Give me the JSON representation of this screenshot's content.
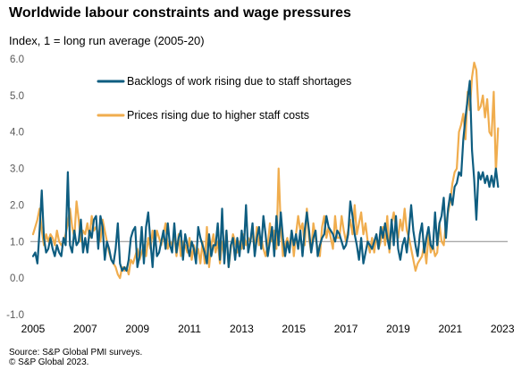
{
  "title": "Worldwide labour constraints and wage pressures",
  "subtitle": "Index, 1 = long run average (2005-20)",
  "source_line1": "Source: S&P Global PMI surveys.",
  "source_line2": "© S&P Global 2023.",
  "chart_data": {
    "type": "line",
    "ylim": [
      -1.0,
      6.0
    ],
    "yticks": [
      "-1.0",
      "0.0",
      "1.0",
      "2.0",
      "3.0",
      "4.0",
      "5.0",
      "6.0"
    ],
    "xlim": [
      2005.0,
      2023.2
    ],
    "xticks": [
      "2005",
      "2007",
      "2009",
      "2011",
      "2013",
      "2015",
      "2017",
      "2019",
      "2021",
      "2023"
    ],
    "reference_line": 1.0,
    "grid": false,
    "legend_position": "top-center",
    "series": [
      {
        "name": "Backlogs of work rising due to staff shortages",
        "color": "#0e5d80",
        "x_start": 2005.0,
        "x_step": 0.08333,
        "values": [
          0.6,
          0.7,
          0.4,
          1.3,
          2.4,
          1.1,
          0.7,
          0.8,
          1.1,
          0.8,
          0.6,
          0.9,
          0.7,
          0.6,
          1.1,
          0.9,
          2.9,
          0.9,
          0.7,
          1.3,
          0.9,
          1.0,
          1.6,
          0.7,
          1.1,
          0.7,
          1.3,
          1.1,
          1.6,
          1.7,
          0.8,
          1.7,
          1.4,
          0.5,
          1.0,
          0.8,
          0.5,
          0.4,
          0.8,
          1.5,
          0.4,
          0.2,
          0.3,
          0.2,
          0.5,
          1.1,
          1.3,
          1.4,
          0.3,
          0.6,
          1.4,
          0.4,
          1.4,
          1.8,
          1.0,
          0.3,
          1.3,
          0.6,
          0.7,
          1.0,
          1.3,
          0.8,
          1.5,
          0.9,
          0.7,
          1.5,
          0.7,
          1.1,
          1.3,
          0.5,
          1.2,
          0.9,
          0.6,
          1.0,
          0.8,
          0.4,
          1.4,
          1.1,
          0.9,
          0.7,
          0.4,
          1.2,
          0.6,
          0.9,
          0.9,
          1.5,
          0.5,
          1.9,
          0.4,
          1.3,
          0.3,
          0.9,
          1.1,
          0.5,
          1.1,
          0.6,
          1.3,
          0.8,
          2.0,
          0.7,
          1.0,
          1.5,
          0.6,
          1.1,
          1.4,
          0.8,
          1.7,
          1.2,
          0.6,
          1.0,
          1.4,
          0.6,
          1.7,
          0.9,
          1.8,
          1.1,
          0.6,
          1.0,
          0.7,
          1.3,
          0.9,
          1.2,
          0.8,
          1.3,
          0.6,
          1.3,
          1.8,
          1.3,
          0.7,
          1.1,
          1.3,
          0.6,
          0.9,
          1.1,
          1.2,
          1.7,
          1.4,
          1.3,
          1.2,
          1.0,
          1.3,
          1.2,
          1.0,
          0.8,
          0.9,
          1.2,
          2.1,
          1.7,
          1.2,
          0.9,
          0.5,
          1.1,
          0.4,
          0.7,
          1.0,
          0.9,
          0.8,
          1.0,
          1.2,
          0.8,
          1.4,
          1.1,
          1.5,
          1.1,
          0.8,
          1.6,
          0.9,
          1.7,
          0.8,
          0.5,
          0.9,
          1.1,
          0.7,
          1.3,
          2.0,
          1.3,
          0.9,
          0.6,
          1.2,
          1.5,
          0.7,
          1.1,
          1.4,
          0.9,
          0.8,
          1.8,
          0.9,
          1.5,
          1.7,
          2.2,
          1.1,
          1.9,
          2.3,
          2.0,
          2.5,
          2.6,
          2.9,
          2.8,
          3.8,
          4.4,
          4.9,
          5.4,
          3.5,
          2.7,
          1.6,
          2.9,
          2.7,
          2.9,
          2.6,
          2.8,
          2.5,
          2.8,
          2.5,
          3.0,
          2.5
        ]
      },
      {
        "name": "Prices rising due to higher staff costs",
        "color": "#f0ad4e",
        "x_start": 2005.0,
        "x_step": 0.08333,
        "values": [
          1.2,
          1.4,
          1.6,
          1.9,
          1.3,
          0.9,
          1.2,
          1.0,
          1.2,
          1.1,
          0.9,
          1.3,
          1.0,
          0.9,
          1.0,
          1.2,
          1.5,
          1.9,
          1.4,
          1.1,
          2.1,
          1.6,
          1.0,
          1.3,
          1.2,
          1.5,
          1.1,
          1.7,
          1.3,
          1.4,
          1.2,
          1.0,
          1.6,
          1.3,
          1.0,
          0.7,
          0.5,
          0.4,
          0.3,
          0.1,
          0.0,
          0.3,
          0.2,
          0.3,
          0.1,
          0.5,
          0.4,
          0.6,
          0.8,
          0.5,
          0.7,
          0.9,
          0.6,
          1.1,
          0.8,
          1.3,
          0.9,
          1.3,
          1.1,
          0.9,
          1.2,
          1.5,
          0.8,
          1.0,
          0.9,
          1.2,
          0.6,
          1.2,
          0.6,
          1.0,
          0.9,
          0.7,
          1.1,
          0.5,
          0.9,
          0.6,
          0.8,
          0.4,
          1.0,
          0.4,
          1.4,
          0.3,
          0.9,
          1.2,
          0.7,
          1.0,
          0.4,
          1.0,
          0.6,
          1.3,
          0.3,
          0.8,
          1.2,
          1.0,
          0.7,
          1.0,
          0.8,
          1.2,
          0.9,
          1.1,
          1.0,
          1.3,
          0.7,
          1.4,
          0.9,
          1.1,
          0.8,
          0.6,
          0.9,
          1.5,
          1.0,
          1.3,
          0.8,
          3.0,
          1.4,
          0.6,
          0.9,
          1.1,
          0.8,
          1.3,
          0.6,
          1.2,
          1.7,
          1.3,
          1.5,
          0.9,
          1.9,
          1.1,
          0.7,
          1.5,
          1.1,
          0.8,
          0.6,
          1.4,
          1.7,
          1.1,
          1.4,
          1.1,
          0.8,
          1.7,
          1.1,
          1.1,
          1.7,
          1.3,
          1.0,
          1.3,
          1.6,
          1.2,
          2.0,
          1.2,
          1.5,
          1.8,
          1.2,
          1.5,
          1.0,
          0.7,
          1.1,
          0.7,
          1.2,
          0.8,
          1.0,
          1.4,
          0.9,
          1.7,
          0.7,
          1.5,
          1.8,
          1.4,
          1.1,
          1.6,
          1.3,
          1.9,
          1.3,
          1.1,
          0.8,
          0.5,
          0.2,
          0.4,
          0.5,
          0.6,
          0.9,
          0.4,
          1.2,
          0.7,
          0.9,
          0.6,
          0.7,
          1.5,
          1.0,
          0.9,
          1.5,
          1.8,
          2.1,
          2.6,
          2.9,
          3.0,
          4.0,
          4.2,
          4.5,
          3.8,
          5.1,
          4.6,
          5.5,
          5.9,
          5.7,
          4.6,
          4.7,
          5.0,
          4.4,
          4.9,
          4.0,
          3.9,
          5.1,
          2.9,
          4.1
        ]
      }
    ]
  }
}
